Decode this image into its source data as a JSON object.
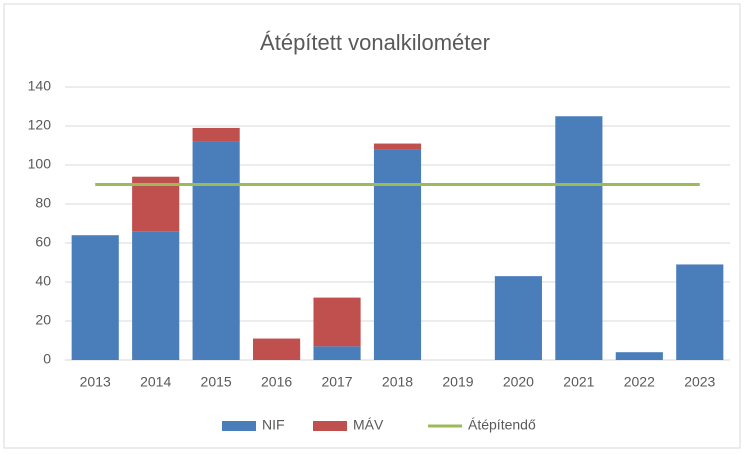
{
  "chart_data": {
    "type": "bar",
    "stacked": true,
    "title": "Átépített vonalkilométer",
    "categories": [
      "2013",
      "2014",
      "2015",
      "2016",
      "2017",
      "2018",
      "2019",
      "2020",
      "2021",
      "2022",
      "2023"
    ],
    "series": [
      {
        "name": "NIF",
        "type": "bar",
        "color": "#4a7ebb",
        "values": [
          64,
          66,
          112,
          0,
          7,
          108,
          0,
          43,
          125,
          4,
          49
        ]
      },
      {
        "name": "MÁV",
        "type": "bar",
        "color": "#c0504d",
        "values": [
          0,
          28,
          7,
          11,
          25,
          3,
          0,
          0,
          0,
          0,
          0
        ]
      },
      {
        "name": "Átépítendő",
        "type": "line",
        "color": "#9bbb59",
        "values": [
          90,
          90,
          90,
          90,
          90,
          90,
          90,
          90,
          90,
          90,
          90
        ]
      }
    ],
    "ylim": [
      0,
      140
    ],
    "yticks": [
      0,
      20,
      40,
      60,
      80,
      100,
      120,
      140
    ],
    "grid": true,
    "legend": "bottom"
  }
}
